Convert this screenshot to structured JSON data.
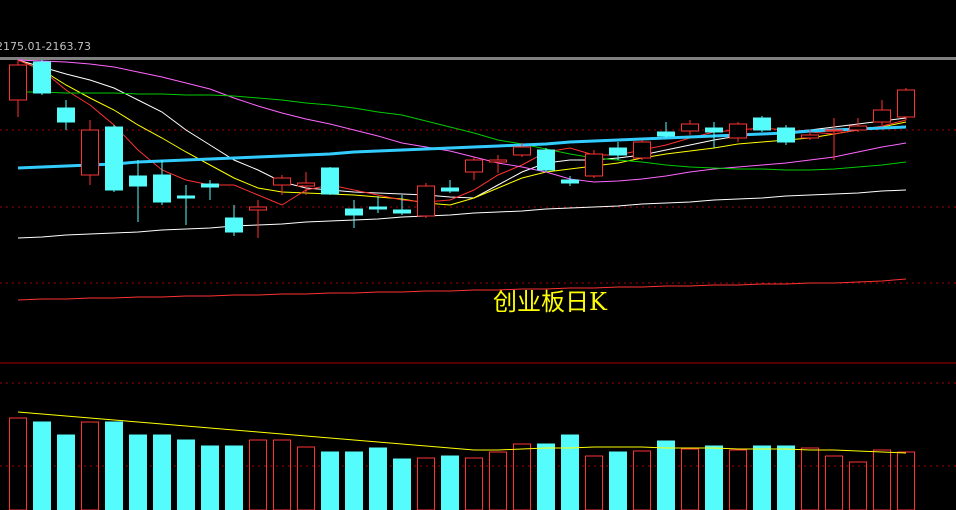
{
  "chart_data": {
    "type": "candlestick",
    "header": "2175.01-2163.73",
    "title": "创业板日K",
    "up_color": "#ff3232",
    "down_color": "#54fcfc",
    "ylim": [
      0,
      300
    ],
    "open": [
      260,
      298,
      252,
      185,
      233,
      184,
      185,
      164,
      176,
      142,
      150,
      175,
      174,
      192,
      151,
      153,
      150,
      144,
      172,
      188,
      198,
      205,
      210,
      180,
      184,
      212,
      202,
      228,
      229,
      232,
      222,
      242,
      232,
      222,
      229,
      230,
      238,
      243
    ],
    "close": [
      295,
      267,
      238,
      230,
      170,
      174,
      158,
      162,
      173,
      128,
      153,
      182,
      177,
      166,
      145,
      151,
      147,
      174,
      169,
      200,
      200,
      213,
      190,
      177,
      206,
      205,
      218,
      224,
      236,
      228,
      236,
      230,
      218,
      225,
      230,
      234,
      250,
      270
    ],
    "high": [
      300,
      300,
      260,
      240,
      235,
      200,
      200,
      175,
      180,
      155,
      160,
      185,
      188,
      193,
      160,
      164,
      165,
      177,
      180,
      203,
      205,
      217,
      212,
      184,
      210,
      218,
      220,
      238,
      240,
      238,
      238,
      244,
      235,
      230,
      242,
      242,
      260,
      272
    ],
    "low": [
      243,
      265,
      230,
      175,
      168,
      138,
      155,
      135,
      160,
      124,
      122,
      165,
      165,
      165,
      132,
      147,
      145,
      142,
      167,
      180,
      187,
      203,
      188,
      174,
      182,
      200,
      200,
      222,
      225,
      212,
      218,
      228,
      215,
      220,
      200,
      228,
      235,
      240
    ],
    "ma": [
      {
        "color": "#ffffff",
        "width": 1,
        "values": [
          300,
          293,
          286,
          280,
          272,
          260,
          248,
          230,
          215,
          200,
          190,
          178,
          172,
          170,
          168,
          167,
          166,
          165,
          163,
          162,
          175,
          188,
          197,
          200,
          200,
          202,
          205,
          210,
          215,
          220,
          224,
          226,
          228,
          230,
          233,
          236,
          239,
          242
        ]
      },
      {
        "color": "#ffff00",
        "width": 1,
        "values": [
          300,
          290,
          275,
          262,
          250,
          235,
          222,
          208,
          195,
          182,
          172,
          168,
          167,
          166,
          165,
          163,
          161,
          157,
          155,
          162,
          172,
          182,
          188,
          191,
          194,
          197,
          202,
          206,
          209,
          212,
          216,
          218,
          220,
          222,
          226,
          230,
          233,
          238
        ]
      },
      {
        "color": "#ff3232",
        "width": 1,
        "values": [
          300,
          290,
          270,
          255,
          235,
          210,
          190,
          180,
          175,
          175,
          165,
          155,
          170,
          175,
          170,
          165,
          160,
          158,
          160,
          170,
          185,
          195,
          208,
          212,
          205,
          205,
          210,
          215,
          222,
          228,
          230,
          232,
          230,
          228,
          226,
          230,
          234,
          240
        ]
      },
      {
        "color": "#ff66ff",
        "width": 1,
        "values": [
          300,
          299,
          298,
          296,
          293,
          288,
          283,
          277,
          271,
          262,
          254,
          247,
          241,
          236,
          230,
          224,
          217,
          213,
          209,
          203,
          197,
          193,
          188,
          181,
          178,
          179,
          181,
          184,
          188,
          191,
          193,
          195,
          197,
          200,
          203,
          208,
          213,
          217
        ]
      },
      {
        "color": "#00cc00",
        "width": 1,
        "values": [
          268,
          268,
          267,
          267,
          267,
          266,
          266,
          265,
          265,
          264,
          262,
          260,
          257,
          255,
          252,
          248,
          245,
          239,
          233,
          227,
          220,
          216,
          211,
          206,
          202,
          200,
          198,
          195,
          193,
          192,
          191,
          191,
          190,
          190,
          191,
          193,
          195,
          198
        ]
      },
      {
        "color": "#33ccff",
        "width": 3,
        "values": [
          192,
          193,
          194,
          195,
          196,
          198,
          199,
          200,
          201,
          202,
          203,
          204,
          205,
          206,
          208,
          209,
          210,
          211,
          212,
          213,
          214,
          215,
          216,
          218,
          219,
          220,
          221,
          222,
          223,
          224,
          225,
          226,
          227,
          229,
          230,
          231,
          232,
          233
        ]
      },
      {
        "color": "#ffffff",
        "width": 1,
        "values": [
          122,
          123,
          125,
          126,
          127,
          128,
          130,
          131,
          132,
          134,
          135,
          136,
          138,
          139,
          140,
          141,
          143,
          144,
          145,
          147,
          148,
          149,
          151,
          152,
          153,
          154,
          156,
          157,
          158,
          160,
          161,
          162,
          164,
          165,
          166,
          167,
          169,
          170
        ]
      },
      {
        "color": "#ff3232",
        "width": 1,
        "values": [
          60,
          61,
          61,
          62,
          62,
          63,
          63,
          64,
          64,
          65,
          65,
          66,
          66,
          67,
          67,
          68,
          68,
          69,
          69,
          70,
          70,
          71,
          71,
          72,
          72,
          73,
          73,
          74,
          74,
          75,
          75,
          76,
          76,
          77,
          77,
          78,
          79,
          81
        ]
      }
    ],
    "volume": {
      "ylim": [
        0,
        145
      ],
      "values": [
        92,
        88,
        75,
        88,
        88,
        75,
        75,
        70,
        64,
        64,
        70,
        70,
        63,
        58,
        58,
        62,
        51,
        52,
        54,
        52,
        58,
        66,
        66,
        75,
        54,
        58,
        59,
        69,
        61,
        64,
        60,
        64,
        64,
        62,
        54,
        48,
        60,
        58
      ],
      "ma": [
        {
          "color": "#ffff00",
          "values": [
            98,
            96,
            94,
            92,
            90,
            88,
            86,
            84,
            82,
            80,
            78,
            76,
            74,
            72,
            70,
            68,
            66,
            64,
            62,
            60,
            60,
            61,
            62,
            62,
            63,
            63,
            63,
            62,
            62,
            62,
            61,
            61,
            61,
            60,
            60,
            59,
            58,
            57
          ]
        }
      ]
    }
  }
}
